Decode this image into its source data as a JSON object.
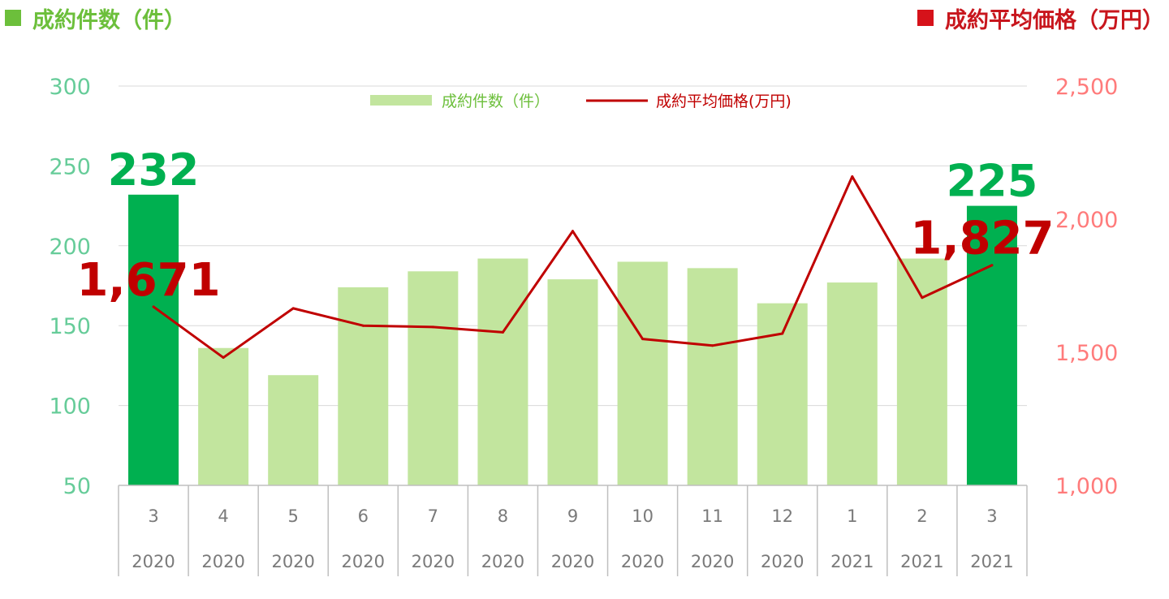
{
  "header": {
    "left_title": "成約件数（件）",
    "right_title": "成約平均価格（万円）",
    "left_color": "#6cbf3b",
    "right_color": "#d6121a"
  },
  "chart_data": {
    "type": "bar",
    "categories": [
      {
        "month": "3",
        "year": "2020"
      },
      {
        "month": "4",
        "year": "2020"
      },
      {
        "month": "5",
        "year": "2020"
      },
      {
        "month": "6",
        "year": "2020"
      },
      {
        "month": "7",
        "year": "2020"
      },
      {
        "month": "8",
        "year": "2020"
      },
      {
        "month": "9",
        "year": "2020"
      },
      {
        "month": "10",
        "year": "2020"
      },
      {
        "month": "11",
        "year": "2020"
      },
      {
        "month": "12",
        "year": "2020"
      },
      {
        "month": "1",
        "year": "2021"
      },
      {
        "month": "2",
        "year": "2021"
      },
      {
        "month": "3",
        "year": "2021"
      }
    ],
    "series": [
      {
        "name": "成約件数（件）",
        "type": "bar",
        "axis": "left",
        "values": [
          232,
          136,
          119,
          174,
          184,
          192,
          179,
          190,
          186,
          164,
          177,
          192,
          225
        ],
        "highlight_indices": [
          0,
          12
        ],
        "color": "#c2e59e",
        "highlight_color": "#00b050"
      },
      {
        "name": "成約平均価格(万円)",
        "type": "line",
        "axis": "right",
        "values": [
          1671,
          1480,
          1665,
          1600,
          1595,
          1575,
          1955,
          1550,
          1525,
          1570,
          2160,
          1705,
          1827
        ],
        "color": "#c00000"
      }
    ],
    "left_axis": {
      "min": 50,
      "max": 300,
      "ticks": [
        "50",
        "100",
        "150",
        "200",
        "250",
        "300"
      ]
    },
    "right_axis": {
      "min": 1000,
      "max": 2500,
      "ticks": [
        "1,000",
        "1,500",
        "2,000",
        "2,500"
      ]
    },
    "data_labels": [
      {
        "text": "232",
        "series": 0,
        "index": 0,
        "color": "#00b050"
      },
      {
        "text": "225",
        "series": 0,
        "index": 12,
        "color": "#00b050"
      },
      {
        "text": "1,671",
        "series": 1,
        "index": 0,
        "color": "#c00000"
      },
      {
        "text": "1,827",
        "series": 1,
        "index": 12,
        "color": "#c00000"
      }
    ],
    "grid": true,
    "legend_position": "top-center"
  }
}
